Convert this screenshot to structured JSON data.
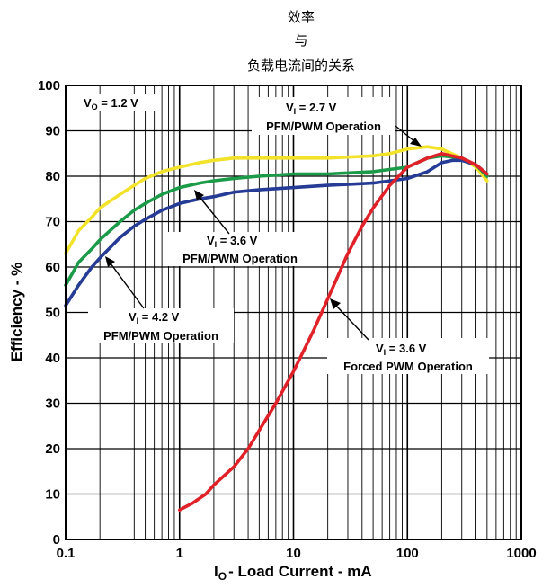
{
  "chart_data": {
    "type": "line",
    "title_lines": [
      "效率",
      "与",
      "负载电流间的关系"
    ],
    "xlabel": {
      "main": "I",
      "sub": "O",
      "rest": "- Load Current - mA"
    },
    "ylabel": "Efficiency - %",
    "xscale": "log",
    "xlim": [
      0.1,
      1000
    ],
    "ylim": [
      0,
      100
    ],
    "x_ticks": [
      0.1,
      1,
      10,
      100,
      1000
    ],
    "x_tick_labels": [
      "0.1",
      "1",
      "10",
      "100",
      "1000"
    ],
    "y_ticks": [
      0,
      10,
      20,
      30,
      40,
      50,
      60,
      70,
      80,
      90,
      100
    ],
    "y_tick_labels": [
      "0",
      "10",
      "20",
      "30",
      "40",
      "50",
      "60",
      "70",
      "80",
      "90",
      "100"
    ],
    "grid": true,
    "series": [
      {
        "color": "#f2e32a",
        "x": [
          0.1,
          0.13,
          0.17,
          0.2,
          0.3,
          0.4,
          0.5,
          0.7,
          1,
          1.5,
          2,
          3,
          5,
          10,
          20,
          50,
          70,
          100,
          150,
          200,
          300,
          400,
          500
        ],
        "y": [
          63,
          68,
          71,
          73,
          76,
          78,
          79.5,
          81,
          82,
          83,
          83.5,
          84,
          84,
          84,
          84,
          84.5,
          85,
          86,
          86.5,
          86,
          84,
          82,
          79
        ]
      },
      {
        "color": "#1b9a48",
        "x": [
          0.1,
          0.13,
          0.17,
          0.2,
          0.3,
          0.4,
          0.5,
          0.7,
          1,
          1.5,
          2,
          3,
          5,
          10,
          20,
          50,
          100,
          150,
          200,
          300,
          400,
          500
        ],
        "y": [
          56,
          61,
          64,
          66,
          70,
          72.5,
          74,
          76,
          77.5,
          78.5,
          79,
          79.5,
          80,
          80.5,
          80.5,
          81,
          82,
          84,
          84.5,
          84,
          82.5,
          80
        ]
      },
      {
        "color": "#253b95",
        "x": [
          0.1,
          0.13,
          0.17,
          0.2,
          0.3,
          0.4,
          0.5,
          0.7,
          1,
          1.5,
          2,
          3,
          5,
          10,
          20,
          50,
          100,
          150,
          200,
          250,
          300,
          400,
          500
        ],
        "y": [
          51.5,
          56,
          60,
          62,
          66.5,
          69,
          70.5,
          72.5,
          74,
          75,
          75.5,
          76.5,
          77,
          77.5,
          78,
          78.5,
          79.5,
          81,
          83,
          83.5,
          83.5,
          82.5,
          80.5
        ]
      },
      {
        "color": "#e02228",
        "x": [
          1,
          1.3,
          1.7,
          2,
          3,
          4,
          5,
          7,
          10,
          15,
          20,
          30,
          40,
          50,
          70,
          100,
          150,
          200,
          300,
          400,
          500
        ],
        "y": [
          6.5,
          8,
          10,
          12,
          16,
          20,
          24,
          30,
          37,
          46,
          53,
          63,
          69,
          73,
          78,
          82,
          84,
          85,
          84,
          82.5,
          80.5
        ]
      }
    ],
    "annotations": [
      {
        "main": "V",
        "sub": "O",
        "rest": " = 1.2 V",
        "line2": ""
      },
      {
        "main": "V",
        "sub": "I",
        "rest": " = 2.7 V",
        "line2": "PFM/PWM Operation"
      },
      {
        "main": "V",
        "sub": "I",
        "rest": " = 3.6 V",
        "line2": "PFM/PWM Operation"
      },
      {
        "main": "V",
        "sub": "I",
        "rest": " = 4.2 V",
        "line2": "PFM/PWM Operation"
      },
      {
        "main": "V",
        "sub": "I",
        "rest": " = 3.6 V",
        "line2": "Forced PWM Operation"
      }
    ]
  }
}
